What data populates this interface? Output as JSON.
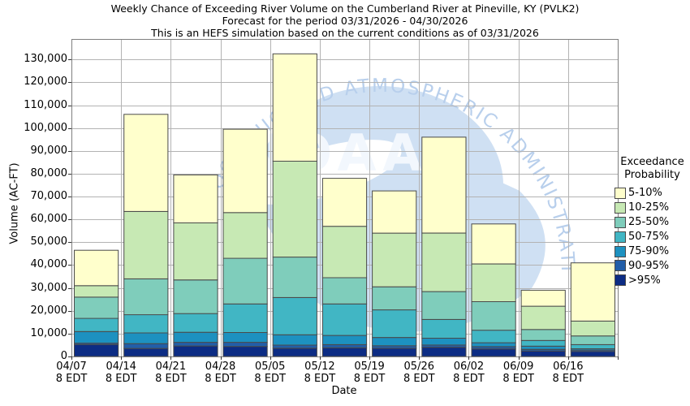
{
  "title": {
    "line1": "Weekly Chance of Exceeding River Volume on the Cumberland River at Pineville, KY (PVLK2)",
    "line2": "Forecast for the period 03/31/2026 - 04/30/2026",
    "line3": "This is an HEFS simulation based on the current conditions as of 03/31/2026"
  },
  "y_axis": {
    "label": "Volume (AC-FT)",
    "min": 0,
    "max": 130000,
    "tick_interval": 10000,
    "tick_labels": [
      "0",
      "10,000",
      "20,000",
      "30,000",
      "40,000",
      "50,000",
      "60,000",
      "70,000",
      "80,000",
      "90,000",
      "100,000",
      "110,000",
      "120,000",
      "130,000"
    ]
  },
  "x_axis": {
    "label": "Date",
    "time_suffix": "8 EDT"
  },
  "legend": {
    "title_line1": "Exceedance",
    "title_line2": "Probability",
    "items": [
      {
        "label": "5-10%",
        "color": "#ffffcc"
      },
      {
        "label": "10-25%",
        "color": "#c7e9b4"
      },
      {
        "label": "25-50%",
        "color": "#7fcdbb"
      },
      {
        "label": "50-75%",
        "color": "#41b6c4"
      },
      {
        "label": "75-90%",
        "color": "#1d91c0"
      },
      {
        "label": "90-95%",
        "color": "#225ea8"
      },
      {
        "label": ">95%",
        "color": "#0c2c84"
      }
    ]
  },
  "watermark": {
    "arc_text": "NATIONAL OCEANIC AND ATMOSPHERIC ADMINISTRATION",
    "center_text": "NOAA",
    "blob_color": "#cfe0f3",
    "arc_text_color": "#b8cfec",
    "center_text_color": "#f2f7fd"
  },
  "chart_data": {
    "type": "bar",
    "stacked": true,
    "unit": "AC-FT",
    "ylabel": "Volume (AC-FT)",
    "xlabel": "Date",
    "ylim": [
      0,
      130000
    ],
    "grid": true,
    "legend_position": "right",
    "categories": [
      "04/07",
      "04/14",
      "04/21",
      "04/28",
      "05/05",
      "05/12",
      "05/19",
      "05/26",
      "06/02",
      "06/09",
      "06/16"
    ],
    "category_time": "8 EDT",
    "series_order_note": "bottom of stack to top of stack",
    "series": [
      {
        "name": ">95%",
        "color": "#0c2c84",
        "values": [
          5200,
          3500,
          4600,
          4400,
          3600,
          3800,
          3600,
          4000,
          3300,
          2400,
          2200
        ]
      },
      {
        "name": "90-95%",
        "color": "#225ea8",
        "values": [
          600,
          2100,
          1600,
          1800,
          1400,
          1400,
          1100,
          1000,
          1000,
          700,
          600
        ]
      },
      {
        "name": "75-90%",
        "color": "#1d91c0",
        "values": [
          5100,
          4700,
          4400,
          4300,
          4500,
          4000,
          3600,
          3000,
          1700,
          1400,
          600
        ]
      },
      {
        "name": "50-75%",
        "color": "#41b6c4",
        "values": [
          5800,
          8000,
          8200,
          12500,
          16300,
          13800,
          12100,
          8200,
          5500,
          2500,
          1800
        ]
      },
      {
        "name": "25-50%",
        "color": "#7fcdbb",
        "values": [
          9300,
          15700,
          14700,
          20000,
          17700,
          11500,
          10100,
          12200,
          12500,
          4800,
          3800
        ]
      },
      {
        "name": "10-25%",
        "color": "#c7e9b4",
        "values": [
          5000,
          29500,
          25000,
          20000,
          42000,
          22500,
          23500,
          25600,
          16500,
          10200,
          6500
        ]
      },
      {
        "name": "5-10%",
        "color": "#ffffcc",
        "values": [
          15500,
          42500,
          21000,
          36500,
          47000,
          21000,
          18500,
          42000,
          17500,
          7000,
          25500
        ]
      }
    ],
    "bar_totals": [
      46500,
      106000,
      79500,
      99500,
      132500,
      78000,
      72500,
      96000,
      58000,
      29000,
      41000
    ]
  },
  "style": {
    "bar_border_color": "#4a4a4a",
    "grid_color": "#b3b3b3",
    "plot_border_color": "#808080",
    "tick_color": "#333333",
    "background": "#ffffff"
  }
}
